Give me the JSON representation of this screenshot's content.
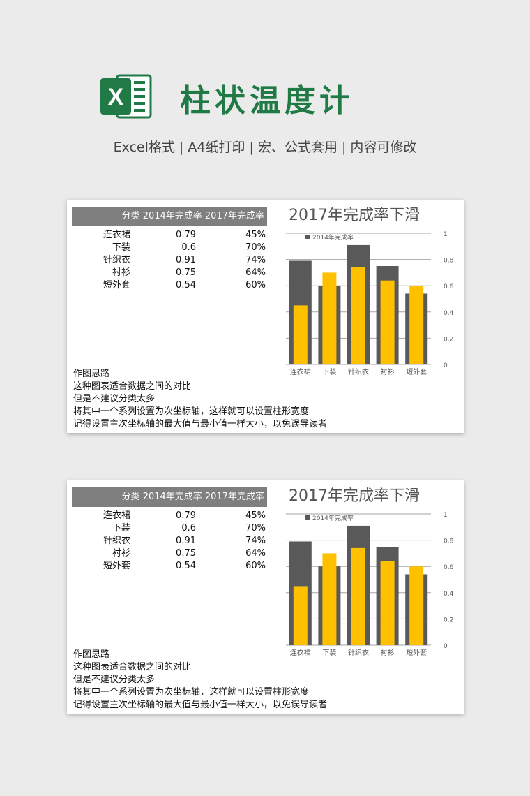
{
  "header": {
    "logo_text": "X",
    "title": "柱状温度计",
    "subtitle": "Excel格式 |  A4纸打印 | 宏、公式套用 | 内容可修改"
  },
  "colors": {
    "brand_green": "#1f7a45",
    "series_2014": "#595959",
    "series_2017": "#ffc000",
    "header_gray": "#7f7f7f"
  },
  "sheets": [
    {
      "table": {
        "header": "分类 2014年完成率 2017年完成率",
        "rows": [
          {
            "category": "连衣裙",
            "v2014": "0.79",
            "v2017": "45%"
          },
          {
            "category": "下装",
            "v2014": "0.6",
            "v2017": "70%"
          },
          {
            "category": "针织衣",
            "v2014": "0.91",
            "v2017": "74%"
          },
          {
            "category": "衬衫",
            "v2014": "0.75",
            "v2017": "64%"
          },
          {
            "category": "短外套",
            "v2014": "0.54",
            "v2017": "60%"
          }
        ]
      },
      "notes": [
        "作图思路",
        "这种图表适合数据之间的对比",
        "但是不建议分类太多",
        "将其中一个系列设置为次坐标轴，这样就可以设置柱形宽度",
        "记得设置主次坐标轴的最大值与最小值一样大小，以免误导读者"
      ]
    },
    {
      "table": {
        "header": "分类 2014年完成率 2017年完成率",
        "rows": [
          {
            "category": "连衣裙",
            "v2014": "0.79",
            "v2017": "45%"
          },
          {
            "category": "下装",
            "v2014": "0.6",
            "v2017": "70%"
          },
          {
            "category": "针织衣",
            "v2014": "0.91",
            "v2017": "74%"
          },
          {
            "category": "衬衫",
            "v2014": "0.75",
            "v2017": "64%"
          },
          {
            "category": "短外套",
            "v2014": "0.54",
            "v2017": "60%"
          }
        ]
      },
      "notes": [
        "作图思路",
        "这种图表适合数据之间的对比",
        "但是不建议分类太多",
        "将其中一个系列设置为次坐标轴，这样就可以设置柱形宽度",
        "记得设置主次坐标轴的最大值与最小值一样大小，以免误导读者"
      ]
    }
  ],
  "chart_data": [
    {
      "type": "bar",
      "title": "2017年完成率下滑",
      "categories": [
        "连衣裙",
        "下装",
        "针织衣",
        "衬衫",
        "短外套"
      ],
      "series": [
        {
          "name": "2014年完成率",
          "values": [
            0.79,
            0.6,
            0.91,
            0.75,
            0.54
          ],
          "color": "#595959"
        },
        {
          "values": [
            0.45,
            0.7,
            0.74,
            0.64,
            0.6
          ],
          "color": "#ffc000"
        }
      ],
      "ylim": [
        0,
        1
      ],
      "yticks": [
        "0",
        "0.2",
        "0.4",
        "0.6",
        "0.8",
        "1"
      ],
      "grid": true,
      "legend": "top-left",
      "y_axis_side": "right"
    },
    {
      "type": "bar",
      "title": "2017年完成率下滑",
      "categories": [
        "连衣裙",
        "下装",
        "针织衣",
        "衬衫",
        "短外套"
      ],
      "series": [
        {
          "name": "2014年完成率",
          "values": [
            0.79,
            0.6,
            0.91,
            0.75,
            0.54
          ],
          "color": "#595959"
        },
        {
          "values": [
            0.45,
            0.7,
            0.74,
            0.64,
            0.6
          ],
          "color": "#ffc000"
        }
      ],
      "ylim": [
        0,
        1
      ],
      "yticks": [
        "0",
        "0.2",
        "0.4",
        "0.6",
        "0.8",
        "1"
      ],
      "grid": true,
      "legend": "top-left",
      "y_axis_side": "right"
    }
  ]
}
